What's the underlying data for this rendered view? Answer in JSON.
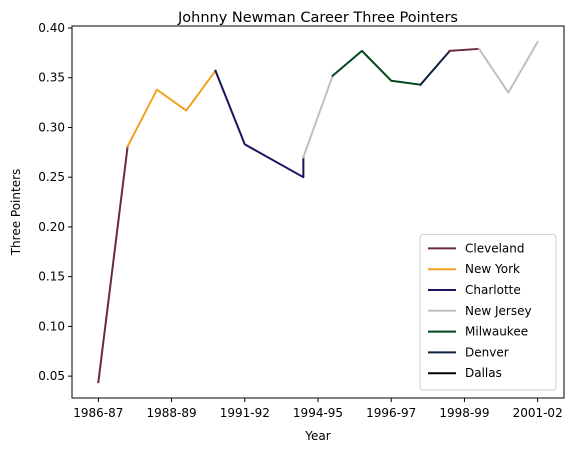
{
  "chart_data": {
    "type": "line",
    "title": "Johnny Newman Career Three Pointers",
    "xlabel": "Year",
    "ylabel": "Three Pointers",
    "x_ticks": [
      "1986-87",
      "1988-89",
      "1991-92",
      "1994-95",
      "1996-97",
      "1998-99",
      "2001-02"
    ],
    "x_tick_positions": [
      0,
      2.5,
      5,
      7.5,
      10,
      12.5,
      15
    ],
    "xlim": [
      -0.9,
      15.9
    ],
    "y_ticks": [
      "0.05",
      "0.10",
      "0.15",
      "0.20",
      "0.25",
      "0.30",
      "0.35",
      "0.40"
    ],
    "y_tick_values": [
      0.05,
      0.1,
      0.15,
      0.2,
      0.25,
      0.3,
      0.35,
      0.4
    ],
    "ylim": [
      0.028,
      0.402
    ],
    "legend_position": "lower right",
    "grid": false,
    "series": [
      {
        "name": "Cleveland",
        "color": "#6a2a3c",
        "x": [
          0,
          1
        ],
        "y": [
          0.044,
          0.281
        ]
      },
      {
        "name": "New York",
        "color": "#f2a11e",
        "x": [
          1,
          2,
          3,
          4
        ],
        "y": [
          0.281,
          0.338,
          0.317,
          0.357
        ]
      },
      {
        "name": "Charlotte",
        "color": "#1d1160",
        "x": [
          4,
          5,
          7,
          7
        ],
        "y": [
          0.357,
          0.283,
          0.25,
          0.27
        ]
      },
      {
        "name": "New Jersey",
        "color": "#c0c0c0",
        "x": [
          7,
          8
        ],
        "y": [
          0.27,
          0.352
        ]
      },
      {
        "name": "Milwaukee",
        "color": "#00471b",
        "x": [
          8,
          9,
          10,
          11
        ],
        "y": [
          0.352,
          0.377,
          0.347,
          0.343
        ]
      },
      {
        "name": "Denver",
        "color": "#0e2240",
        "x": [
          11,
          12
        ],
        "y": [
          0.343,
          0.377
        ]
      },
      {
        "name": "Cleveland",
        "color": "#6a2a3c",
        "x": [
          12,
          13
        ],
        "y": [
          0.377,
          0.379
        ]
      },
      {
        "name": "New Jersey",
        "color": "#c0c0c0",
        "x": [
          13,
          14,
          15
        ],
        "y": [
          0.379,
          0.335,
          0.386
        ]
      }
    ],
    "legend": [
      {
        "label": "Cleveland",
        "color": "#6a2a3c"
      },
      {
        "label": "New York",
        "color": "#f2a11e"
      },
      {
        "label": "Charlotte",
        "color": "#1d1160"
      },
      {
        "label": "New Jersey",
        "color": "#c0c0c0"
      },
      {
        "label": "Milwaukee",
        "color": "#00471b"
      },
      {
        "label": "Denver",
        "color": "#0e2240"
      },
      {
        "label": "Dallas",
        "color": "#000000"
      }
    ]
  }
}
